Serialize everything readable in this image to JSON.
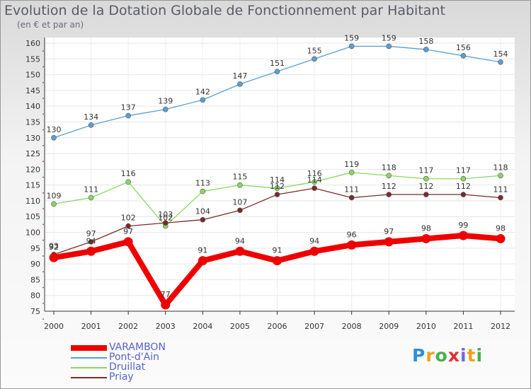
{
  "title": "Evolution de la Dotation Globale de Fonctionnement par Habitant",
  "subtitle": "(en € et par an)",
  "logo_text": "Proxiti",
  "chart_data": {
    "type": "line",
    "x": [
      "2000",
      "2001",
      "2002",
      "2003",
      "2004",
      "2005",
      "2006",
      "2007",
      "2008",
      "2009",
      "2010",
      "2011",
      "2012"
    ],
    "ylim": [
      75,
      160
    ],
    "yticks": [
      75,
      80,
      85,
      90,
      95,
      100,
      105,
      110,
      115,
      120,
      125,
      130,
      135,
      140,
      145,
      150,
      155,
      160
    ],
    "legend_position": "bottom-left",
    "series": [
      {
        "name": "VARAMBON",
        "color": "#ee0000",
        "values": [
          92,
          94,
          97,
          77,
          91,
          94,
          91,
          94,
          96,
          97,
          98,
          99,
          98
        ]
      },
      {
        "name": "Pont-d'Ain",
        "color": "#5a9fd4",
        "values": [
          130,
          134,
          137,
          139,
          142,
          147,
          151,
          155,
          159,
          159,
          158,
          156,
          154
        ]
      },
      {
        "name": "Druillat",
        "color": "#88d860",
        "values": [
          109,
          111,
          116,
          102,
          113,
          115,
          114,
          116,
          119,
          118,
          117,
          117,
          118
        ]
      },
      {
        "name": "Priay",
        "color": "#7a2b2b",
        "values": [
          93,
          97,
          102,
          103,
          104,
          107,
          112,
          114,
          111,
          112,
          112,
          112,
          111
        ]
      }
    ]
  }
}
